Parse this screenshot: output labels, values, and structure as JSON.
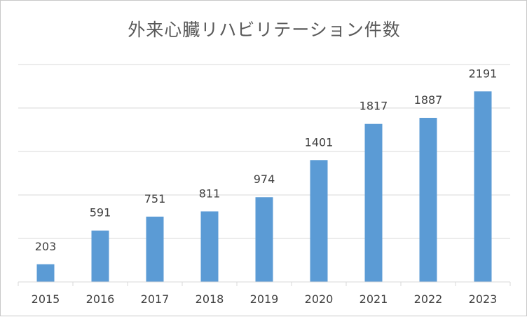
{
  "chart_data": {
    "type": "bar",
    "title": "外来心臓リハビリテーション件数",
    "xlabel": "",
    "ylabel": "",
    "categories": [
      "2015",
      "2016",
      "2017",
      "2018",
      "2019",
      "2020",
      "2021",
      "2022",
      "2023"
    ],
    "values": [
      203,
      591,
      751,
      811,
      974,
      1401,
      1817,
      1887,
      2191
    ],
    "ylim": [
      0,
      2500
    ],
    "grid": true,
    "y_tick_labels_shown": false,
    "data_labels": true,
    "bar_color": "#5b9bd5"
  }
}
